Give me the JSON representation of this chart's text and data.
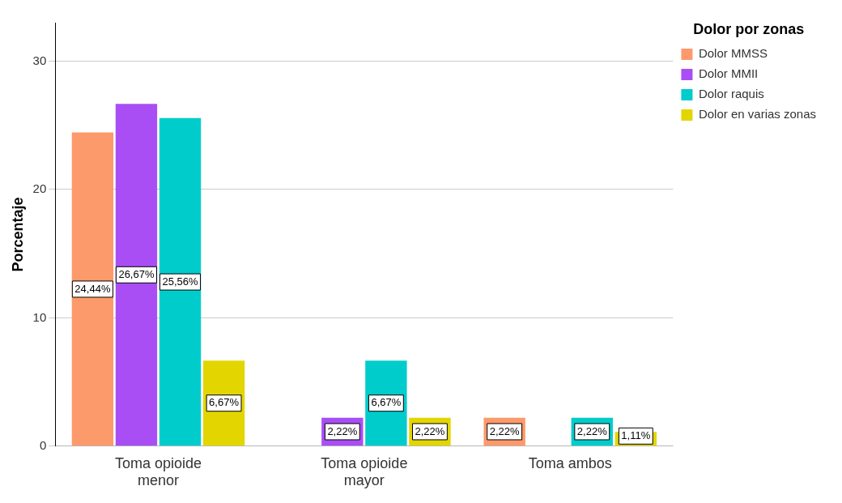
{
  "chart_data": {
    "type": "bar",
    "categories": [
      "Toma opioide menor",
      "Toma opioide mayor",
      "Toma ambos"
    ],
    "ylabel": "Porcentaje",
    "legend_title": "Dolor por zonas",
    "ylim": [
      0,
      33
    ],
    "yticks": [
      0,
      10,
      20,
      30
    ],
    "grid": "y",
    "legend": "top right",
    "series": [
      {
        "name": "Dolor MMSS",
        "color": "#fd9a6b",
        "values": [
          24.44,
          null,
          2.22
        ],
        "value_labels": [
          "24,44%",
          null,
          "2,22%"
        ]
      },
      {
        "name": "Dolor MMII",
        "color": "#a94ef5",
        "values": [
          26.67,
          2.22,
          null
        ],
        "value_labels": [
          "26,67%",
          "2,22%",
          null
        ]
      },
      {
        "name": "Dolor raquis",
        "color": "#00cccc",
        "values": [
          25.56,
          6.67,
          2.22
        ],
        "value_labels": [
          "25,56%",
          "6,67%",
          "2,22%"
        ]
      },
      {
        "name": "Dolor en varias zonas",
        "color": "#e3d600",
        "values": [
          6.67,
          2.22,
          1.11
        ],
        "value_labels": [
          "6,67%",
          "2,22%",
          "1,11%"
        ]
      }
    ]
  }
}
